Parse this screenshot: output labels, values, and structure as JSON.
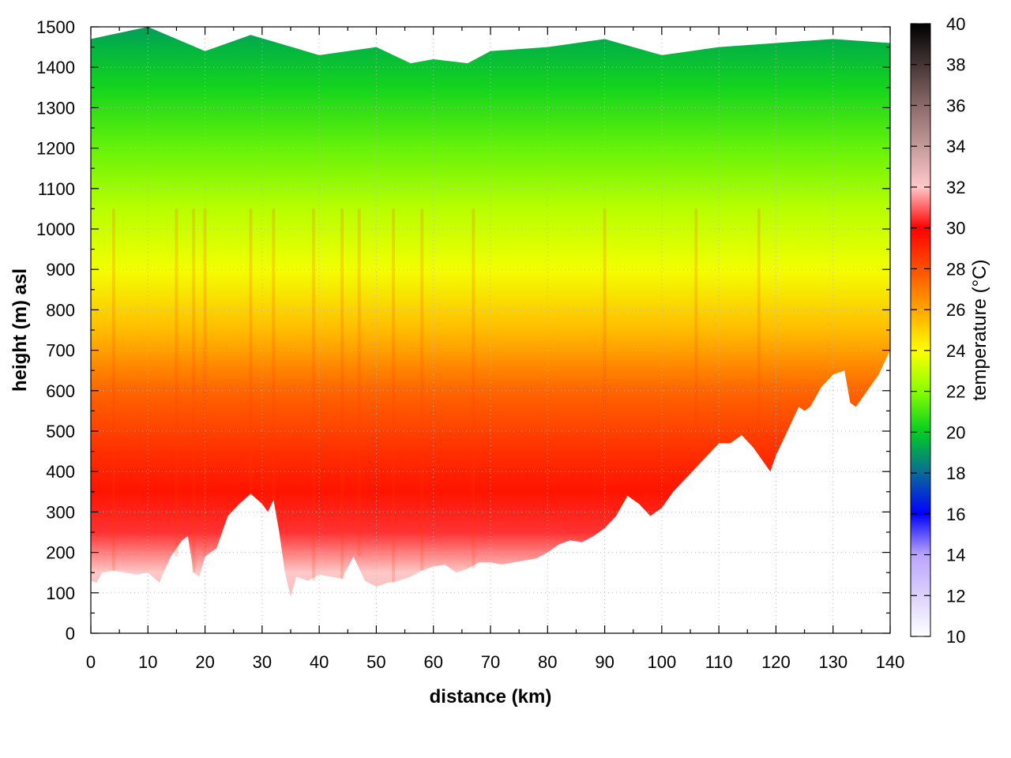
{
  "chart_data": {
    "type": "heatmap",
    "title": "",
    "xlabel": "distance (km)",
    "ylabel": "height (m) asl",
    "xlim": [
      0,
      140
    ],
    "ylim": [
      0,
      1500
    ],
    "x_ticks": [
      0,
      10,
      20,
      30,
      40,
      50,
      60,
      70,
      80,
      90,
      100,
      110,
      120,
      130,
      140
    ],
    "y_ticks": [
      0,
      100,
      200,
      300,
      400,
      500,
      600,
      700,
      800,
      900,
      1000,
      1100,
      1200,
      1300,
      1400,
      1500
    ],
    "grid": true,
    "colorbar": {
      "label": "temperature (°C)",
      "range": [
        10,
        40
      ],
      "ticks": [
        10,
        12,
        14,
        16,
        18,
        20,
        22,
        24,
        26,
        28,
        30,
        32,
        34,
        36,
        38,
        40
      ],
      "placement": "right",
      "colormap_stops": [
        {
          "value": 10,
          "color": "#ffffff"
        },
        {
          "value": 14,
          "color": "#b9a3ff"
        },
        {
          "value": 16,
          "color": "#0000ff"
        },
        {
          "value": 18,
          "color": "#0a6a9a"
        },
        {
          "value": 20,
          "color": "#00cc22"
        },
        {
          "value": 22,
          "color": "#88ff00"
        },
        {
          "value": 24,
          "color": "#ffff00"
        },
        {
          "value": 26,
          "color": "#ffa500"
        },
        {
          "value": 28,
          "color": "#ff5000"
        },
        {
          "value": 30,
          "color": "#ff0000"
        },
        {
          "value": 32,
          "color": "#ffc8c8"
        },
        {
          "value": 34,
          "color": "#c49a9a"
        },
        {
          "value": 36,
          "color": "#8a6a6a"
        },
        {
          "value": 40,
          "color": "#000000"
        }
      ]
    },
    "terrain_profile": {
      "x": [
        0,
        1,
        2,
        4,
        6,
        8,
        10,
        12,
        14,
        16,
        17,
        18,
        19,
        20,
        22,
        24,
        26,
        28,
        30,
        31,
        32,
        33,
        34,
        35,
        36,
        38,
        40,
        42,
        44,
        46,
        48,
        50,
        52,
        54,
        56,
        58,
        60,
        62,
        64,
        66,
        68,
        70,
        72,
        74,
        76,
        78,
        80,
        82,
        84,
        86,
        88,
        90,
        92,
        94,
        96,
        98,
        100,
        102,
        104,
        106,
        108,
        110,
        112,
        114,
        116,
        118,
        119,
        120,
        122,
        124,
        125,
        126,
        128,
        130,
        132,
        133,
        134,
        136,
        138,
        140
      ],
      "ground_m": [
        130,
        125,
        150,
        155,
        150,
        145,
        150,
        125,
        190,
        230,
        240,
        150,
        140,
        190,
        210,
        290,
        320,
        345,
        320,
        300,
        330,
        250,
        150,
        90,
        140,
        130,
        145,
        140,
        135,
        190,
        130,
        115,
        125,
        130,
        140,
        155,
        165,
        170,
        150,
        160,
        175,
        175,
        170,
        175,
        180,
        185,
        200,
        220,
        230,
        225,
        240,
        260,
        290,
        340,
        320,
        290,
        310,
        350,
        380,
        410,
        440,
        470,
        470,
        490,
        460,
        420,
        400,
        440,
        500,
        560,
        550,
        560,
        610,
        640,
        650,
        570,
        560,
        600,
        640,
        700
      ]
    },
    "upper_data_limit": {
      "x": [
        0,
        10,
        20,
        28,
        40,
        50,
        56,
        60,
        66,
        70,
        80,
        90,
        100,
        110,
        120,
        130,
        140
      ],
      "height_m": [
        1470,
        1500,
        1440,
        1480,
        1430,
        1450,
        1410,
        1420,
        1410,
        1440,
        1450,
        1470,
        1430,
        1450,
        1460,
        1470,
        1460
      ]
    },
    "temperature_profile": {
      "height_m": [
        0,
        150,
        250,
        350,
        450,
        600,
        750,
        900,
        1050,
        1200,
        1350,
        1450,
        1500
      ],
      "temp_c": [
        33,
        32,
        30.5,
        29.5,
        28.8,
        27.5,
        25.5,
        23.8,
        22.8,
        21.5,
        20.3,
        19.5,
        19
      ]
    }
  }
}
